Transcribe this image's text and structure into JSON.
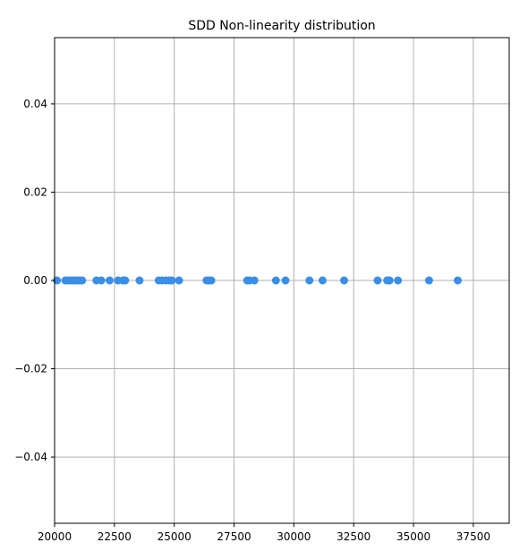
{
  "chart_data": {
    "type": "scatter",
    "title": "SDD Non-linearity distribution",
    "xlabel": "",
    "ylabel": "",
    "xlim": [
      20000,
      39000
    ],
    "ylim": [
      -0.055,
      0.055
    ],
    "xticks": [
      20000,
      22500,
      25000,
      27500,
      30000,
      32500,
      35000,
      37500
    ],
    "xtick_labels": [
      "20000",
      "22500",
      "25000",
      "27500",
      "30000",
      "32500",
      "35000",
      "37500"
    ],
    "yticks": [
      0.04,
      0.02,
      0.0,
      -0.02,
      -0.04
    ],
    "ytick_labels": [
      "0.04",
      "0.02",
      "0.00",
      "−0.02",
      "−0.04"
    ],
    "grid": true,
    "marker_color": "#3a8ee6",
    "series": [
      {
        "x": [
          20100,
          20450,
          20550,
          20650,
          20750,
          20850,
          20950,
          21050,
          21150,
          21750,
          21950,
          22300,
          22650,
          22850,
          22950,
          23550,
          24350,
          24500,
          24650,
          24800,
          24900,
          25200,
          26350,
          26450,
          26550,
          28050,
          28150,
          28350,
          29250,
          29650,
          30650,
          31200,
          32100,
          33500,
          33900,
          34000,
          34350,
          35650,
          36850
        ],
        "y": [
          0,
          0,
          0,
          0,
          0,
          0,
          0,
          0,
          0,
          0,
          0,
          0,
          0,
          0,
          0,
          0,
          0,
          0,
          0,
          0,
          0,
          0,
          0,
          0,
          0,
          0,
          0,
          0,
          0,
          0,
          0,
          0,
          0,
          0,
          0,
          0,
          0,
          0,
          0
        ]
      }
    ]
  }
}
